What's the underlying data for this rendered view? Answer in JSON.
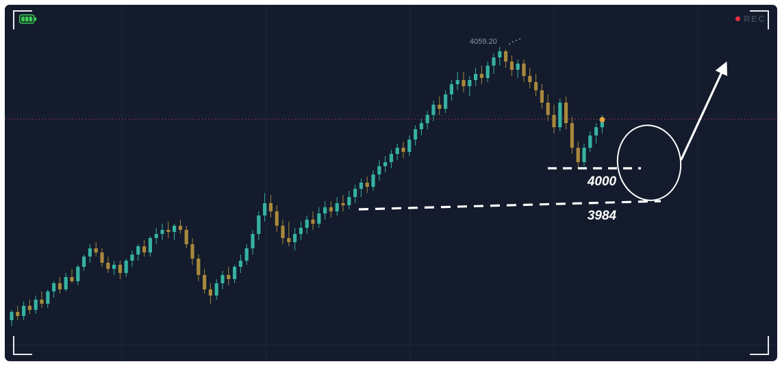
{
  "overlay": {
    "rec_label": "REC",
    "rec_dot_color": "#f03044",
    "rec_text_color": "#3b4658",
    "battery_icon_color": "#3ecf55",
    "viewfinder_color": "#e9edf3"
  },
  "chart_data": {
    "type": "candlestick",
    "title": "",
    "peak_price_label": "4059.20",
    "last_price": 4023.7,
    "ylim": [
      3920,
      4065
    ],
    "grid": true,
    "legend": false,
    "axes_visible": false,
    "colors": {
      "up": "#36b1a2",
      "down": "#a8883c",
      "grid": "#1c2537",
      "background": "#131b2c",
      "last_dot": "#e0a23e",
      "annotation": "#ffffff"
    },
    "price_line": {
      "price": 4024,
      "style": "dotted",
      "color": "#9e3a50"
    },
    "support_levels": [
      {
        "label": "4000",
        "price": 4000,
        "style": "dashed-segment"
      },
      {
        "label": "3984",
        "price": 3984,
        "price_start": 3980,
        "style": "dashed-trendline"
      }
    ],
    "annotations": [
      {
        "type": "ellipse",
        "meaning": "highlighted-entry-zone"
      },
      {
        "type": "arrow-up-right",
        "meaning": "projected-upward-move"
      }
    ],
    "candles": [
      [
        3926,
        3931,
        3923,
        3930
      ],
      [
        3930,
        3933,
        3926,
        3928
      ],
      [
        3928,
        3935,
        3926,
        3933
      ],
      [
        3933,
        3936,
        3929,
        3931
      ],
      [
        3931,
        3938,
        3929,
        3936
      ],
      [
        3936,
        3940,
        3932,
        3934
      ],
      [
        3934,
        3941,
        3932,
        3940
      ],
      [
        3940,
        3945,
        3937,
        3944
      ],
      [
        3944,
        3947,
        3939,
        3941
      ],
      [
        3941,
        3949,
        3940,
        3947
      ],
      [
        3947,
        3951,
        3944,
        3945
      ],
      [
        3945,
        3953,
        3943,
        3952
      ],
      [
        3952,
        3958,
        3950,
        3957
      ],
      [
        3957,
        3963,
        3954,
        3961
      ],
      [
        3961,
        3964,
        3957,
        3959
      ],
      [
        3959,
        3961,
        3952,
        3954
      ],
      [
        3954,
        3957,
        3949,
        3951
      ],
      [
        3951,
        3955,
        3948,
        3953
      ],
      [
        3953,
        3955,
        3946,
        3949
      ],
      [
        3949,
        3956,
        3947,
        3955
      ],
      [
        3955,
        3960,
        3952,
        3958
      ],
      [
        3958,
        3963,
        3955,
        3962
      ],
      [
        3962,
        3965,
        3957,
        3959
      ],
      [
        3959,
        3967,
        3957,
        3966
      ],
      [
        3966,
        3971,
        3963,
        3968
      ],
      [
        3968,
        3973,
        3965,
        3970
      ],
      [
        3970,
        3974,
        3966,
        3969
      ],
      [
        3969,
        3973,
        3965,
        3972
      ],
      [
        3972,
        3975,
        3968,
        3970
      ],
      [
        3970,
        3972,
        3961,
        3963
      ],
      [
        3963,
        3966,
        3953,
        3956
      ],
      [
        3956,
        3958,
        3945,
        3948
      ],
      [
        3948,
        3951,
        3939,
        3941
      ],
      [
        3941,
        3944,
        3934,
        3938
      ],
      [
        3938,
        3946,
        3936,
        3944
      ],
      [
        3944,
        3950,
        3941,
        3948
      ],
      [
        3948,
        3952,
        3943,
        3946
      ],
      [
        3946,
        3953,
        3944,
        3952
      ],
      [
        3952,
        3958,
        3949,
        3955
      ],
      [
        3955,
        3963,
        3953,
        3961
      ],
      [
        3961,
        3970,
        3958,
        3968
      ],
      [
        3968,
        3979,
        3965,
        3977
      ],
      [
        3977,
        3988,
        3974,
        3983
      ],
      [
        3983,
        3987,
        3976,
        3979
      ],
      [
        3979,
        3982,
        3969,
        3972
      ],
      [
        3972,
        3975,
        3963,
        3966
      ],
      [
        3966,
        3974,
        3962,
        3964
      ],
      [
        3964,
        3971,
        3960,
        3968
      ],
      [
        3968,
        3974,
        3965,
        3971
      ],
      [
        3971,
        3977,
        3968,
        3975
      ],
      [
        3975,
        3979,
        3970,
        3973
      ],
      [
        3973,
        3981,
        3971,
        3978
      ],
      [
        3978,
        3984,
        3975,
        3981
      ],
      [
        3981,
        3984,
        3976,
        3979
      ],
      [
        3979,
        3986,
        3977,
        3983
      ],
      [
        3983,
        3987,
        3979,
        3982
      ],
      [
        3982,
        3989,
        3980,
        3986
      ],
      [
        3986,
        3992,
        3983,
        3990
      ],
      [
        3990,
        3995,
        3986,
        3993
      ],
      [
        3993,
        3996,
        3988,
        3991
      ],
      [
        3991,
        3999,
        3989,
        3997
      ],
      [
        3997,
        4004,
        3994,
        4001
      ],
      [
        4001,
        4006,
        3998,
        4003
      ],
      [
        4003,
        4009,
        4000,
        4007
      ],
      [
        4007,
        4012,
        4004,
        4010
      ],
      [
        4010,
        4013,
        4005,
        4008
      ],
      [
        4008,
        4016,
        4006,
        4014
      ],
      [
        4014,
        4021,
        4011,
        4019
      ],
      [
        4019,
        4024,
        4016,
        4022
      ],
      [
        4022,
        4028,
        4019,
        4026
      ],
      [
        4026,
        4033,
        4023,
        4031
      ],
      [
        4031,
        4035,
        4026,
        4029
      ],
      [
        4029,
        4038,
        4027,
        4036
      ],
      [
        4036,
        4043,
        4033,
        4041
      ],
      [
        4041,
        4047,
        4038,
        4043
      ],
      [
        4043,
        4047,
        4037,
        4040
      ],
      [
        4040,
        4045,
        4035,
        4043
      ],
      [
        4043,
        4049,
        4040,
        4046
      ],
      [
        4046,
        4050,
        4041,
        4044
      ],
      [
        4044,
        4052,
        4042,
        4050
      ],
      [
        4050,
        4056,
        4046,
        4054
      ],
      [
        4054,
        4059.2,
        4050,
        4057
      ],
      [
        4057,
        4058,
        4049,
        4052
      ],
      [
        4052,
        4055,
        4045,
        4048
      ],
      [
        4048,
        4053,
        4044,
        4051
      ],
      [
        4051,
        4053,
        4042,
        4045
      ],
      [
        4045,
        4049,
        4039,
        4042
      ],
      [
        4042,
        4046,
        4035,
        4038
      ],
      [
        4038,
        4041,
        4029,
        4032
      ],
      [
        4032,
        4036,
        4023,
        4026
      ],
      [
        4026,
        4031,
        4017,
        4020
      ],
      [
        4020,
        4034,
        4018,
        4032
      ],
      [
        4032,
        4035,
        4019,
        4022
      ],
      [
        4022,
        4025,
        4007,
        4010
      ],
      [
        4010,
        4013,
        4000,
        4003
      ],
      [
        4003,
        4012,
        4001,
        4010
      ],
      [
        4010,
        4018,
        4008,
        4016
      ],
      [
        4016,
        4022,
        4012,
        4020
      ],
      [
        4020,
        4026,
        4017,
        4023.7
      ]
    ]
  }
}
